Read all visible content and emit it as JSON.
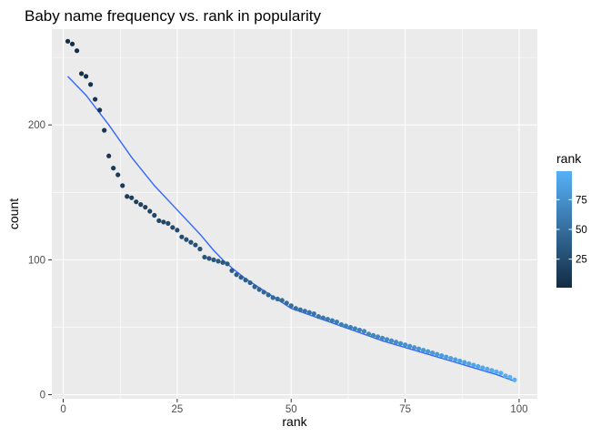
{
  "chart_data": {
    "type": "scatter",
    "title": "Baby name frequency vs. rank in popularity",
    "xlabel": "rank",
    "ylabel": "count",
    "xlim": [
      -2.5,
      104
    ],
    "ylim": [
      -3,
      271
    ],
    "x_ticks": [
      0,
      25,
      50,
      75,
      100
    ],
    "y_ticks": [
      0,
      100,
      200
    ],
    "grid": true,
    "legend": {
      "title": "rank",
      "placement": "right",
      "ticks": [
        25,
        50,
        75
      ],
      "low_color": "#132B43",
      "high_color": "#56B1F7",
      "range": [
        1,
        99
      ]
    },
    "smooth_color": "#3366FF",
    "points": {
      "x": [
        1,
        2,
        3,
        4,
        5,
        6,
        7,
        8,
        9,
        10,
        11,
        12,
        13,
        14,
        15,
        16,
        17,
        18,
        19,
        20,
        21,
        22,
        23,
        24,
        25,
        26,
        27,
        28,
        29,
        30,
        31,
        32,
        33,
        34,
        35,
        36,
        37,
        38,
        39,
        40,
        41,
        42,
        43,
        44,
        45,
        46,
        47,
        48,
        49,
        50,
        51,
        52,
        53,
        54,
        55,
        56,
        57,
        58,
        59,
        60,
        61,
        62,
        63,
        64,
        65,
        66,
        67,
        68,
        69,
        70,
        71,
        72,
        73,
        74,
        75,
        76,
        77,
        78,
        79,
        80,
        81,
        82,
        83,
        84,
        85,
        86,
        87,
        88,
        89,
        90,
        91,
        92,
        93,
        94,
        95,
        96,
        97,
        98,
        99
      ],
      "y": [
        262,
        260,
        255,
        238,
        236,
        230,
        219,
        211,
        196,
        177,
        168,
        163,
        155,
        147,
        146,
        143,
        141,
        139,
        136,
        133,
        129,
        128,
        127,
        124,
        122,
        117,
        115,
        113,
        111,
        108,
        102,
        101,
        100,
        99,
        98,
        97,
        92,
        89,
        87,
        85,
        83,
        80,
        78,
        76,
        74,
        72,
        71,
        70,
        68,
        66,
        64,
        63,
        62,
        61,
        60,
        58,
        57,
        56,
        55,
        54,
        52,
        51,
        50,
        49,
        48,
        47,
        45,
        44,
        43,
        42,
        41,
        40,
        39,
        38,
        37,
        36,
        35,
        34,
        33,
        32,
        31,
        30,
        29,
        28,
        27,
        26,
        25,
        24,
        23,
        22,
        21,
        20,
        19,
        18,
        17,
        16,
        14,
        13,
        11
      ]
    },
    "smooth": {
      "x": [
        1,
        5,
        10,
        15,
        20,
        25,
        30,
        33,
        35,
        37,
        40,
        45,
        50,
        55,
        60,
        65,
        70,
        75,
        80,
        85,
        90,
        95,
        99
      ],
      "y": [
        236,
        222,
        200,
        176,
        155,
        137,
        119,
        107,
        100,
        94,
        86,
        75,
        64,
        58,
        52,
        46,
        40,
        35,
        30,
        25,
        20,
        15,
        10
      ]
    }
  }
}
